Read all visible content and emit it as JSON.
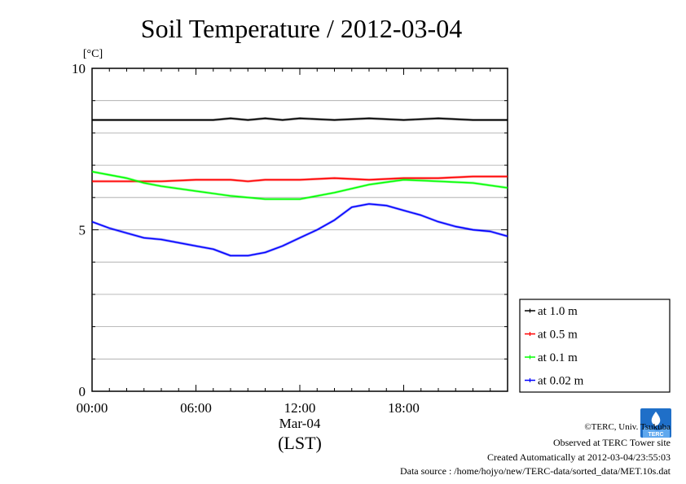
{
  "chart_data": {
    "type": "line",
    "title": "Soil Temperature / 2012-03-04",
    "y_unit": "[°C]",
    "ylim": [
      0,
      10
    ],
    "y_ticks": [
      "0",
      "5",
      "10"
    ],
    "xlim_hours": [
      0,
      24
    ],
    "x_ticks": [
      "00:00",
      "06:00",
      "12:00",
      "18:00"
    ],
    "x_date_label": "Mar-04",
    "x_axis_label": "(LST)",
    "grid": true,
    "legend_placement": "right-bottom",
    "series": [
      {
        "name": "at 1.0 m",
        "color": "#000000",
        "x": [
          0,
          2,
          4,
          6,
          7,
          8,
          9,
          10,
          11,
          12,
          14,
          16,
          18,
          20,
          22,
          24
        ],
        "values": [
          8.4,
          8.4,
          8.4,
          8.4,
          8.4,
          8.45,
          8.4,
          8.45,
          8.4,
          8.45,
          8.4,
          8.45,
          8.4,
          8.45,
          8.4,
          8.4
        ]
      },
      {
        "name": "at 0.5 m",
        "color": "#ff0000",
        "x": [
          0,
          2,
          4,
          6,
          8,
          9,
          10,
          12,
          14,
          16,
          18,
          20,
          22,
          24
        ],
        "values": [
          6.5,
          6.5,
          6.5,
          6.55,
          6.55,
          6.5,
          6.55,
          6.55,
          6.6,
          6.55,
          6.6,
          6.6,
          6.65,
          6.65
        ]
      },
      {
        "name": "at 0.1 m",
        "color": "#00ff00",
        "x": [
          0,
          1,
          2,
          3,
          4,
          6,
          8,
          10,
          12,
          14,
          16,
          18,
          20,
          22,
          24
        ],
        "values": [
          6.8,
          6.7,
          6.6,
          6.45,
          6.35,
          6.2,
          6.05,
          5.95,
          5.95,
          6.15,
          6.4,
          6.55,
          6.5,
          6.45,
          6.3
        ]
      },
      {
        "name": "at 0.02 m",
        "color": "#0000ff",
        "x": [
          0,
          1,
          2,
          3,
          4,
          5,
          6,
          7,
          8,
          9,
          10,
          11,
          12,
          13,
          14,
          15,
          16,
          17,
          18,
          19,
          20,
          21,
          22,
          23,
          24
        ],
        "values": [
          5.25,
          5.05,
          4.9,
          4.75,
          4.7,
          4.6,
          4.5,
          4.4,
          4.2,
          4.2,
          4.3,
          4.5,
          4.75,
          5.0,
          5.3,
          5.7,
          5.8,
          5.75,
          5.6,
          5.45,
          5.25,
          5.1,
          5.0,
          4.95,
          4.8
        ]
      }
    ]
  },
  "footer": {
    "copyright": "©TERC, Univ. Tsukuba",
    "site": "Observed at TERC Tower site",
    "created": "Created Automatically at 2012-03-04/23:55:03",
    "source": "Data source : /home/hojyo/new/TERC-data/sorted_data/MET.10s.dat"
  },
  "logo": {
    "icon": "terc-logo-icon",
    "text": "TERC",
    "color": "#1f6fc8"
  }
}
